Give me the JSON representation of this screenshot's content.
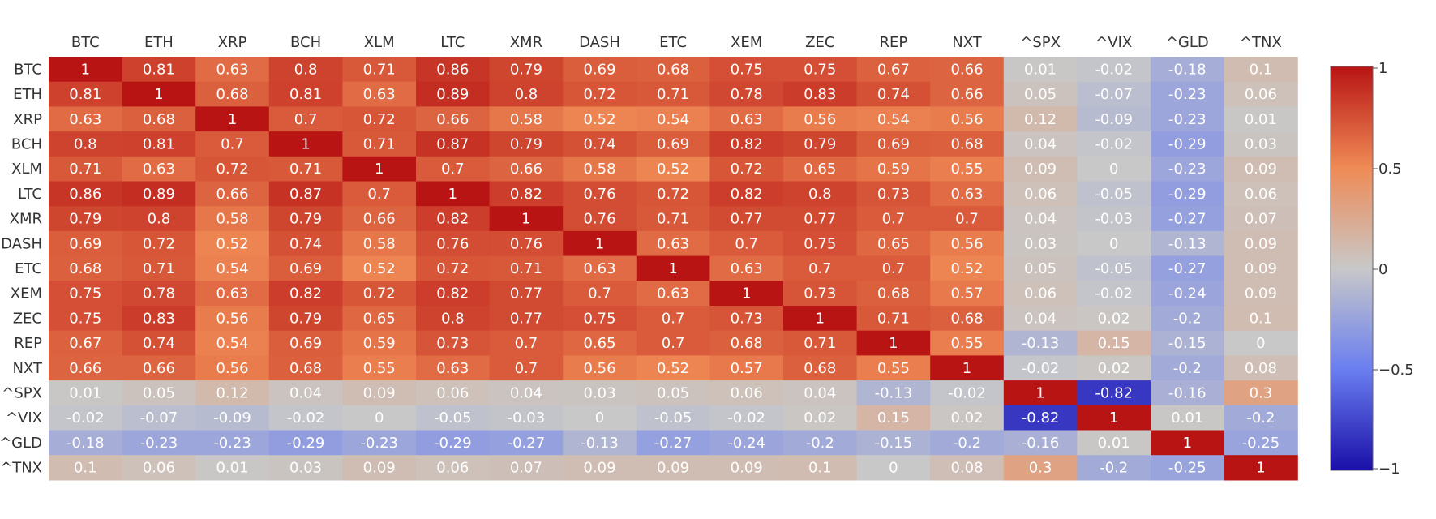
{
  "chart_data": {
    "type": "heatmap",
    "x": [
      "BTC",
      "ETH",
      "XRP",
      "BCH",
      "XLM",
      "LTC",
      "XMR",
      "DASH",
      "ETC",
      "XEM",
      "ZEC",
      "REP",
      "NXT",
      "^SPX",
      "^VIX",
      "^GLD",
      "^TNX"
    ],
    "y": [
      "BTC",
      "ETH",
      "XRP",
      "BCH",
      "XLM",
      "LTC",
      "XMR",
      "DASH",
      "ETC",
      "XEM",
      "ZEC",
      "REP",
      "NXT",
      "^SPX",
      "^VIX",
      "^GLD",
      "^TNX"
    ],
    "z": [
      [
        1,
        0.81,
        0.63,
        0.8,
        0.71,
        0.86,
        0.79,
        0.69,
        0.68,
        0.75,
        0.75,
        0.67,
        0.66,
        0.01,
        -0.02,
        -0.18,
        0.1
      ],
      [
        0.81,
        1,
        0.68,
        0.81,
        0.63,
        0.89,
        0.8,
        0.72,
        0.71,
        0.78,
        0.83,
        0.74,
        0.66,
        0.05,
        -0.07,
        -0.23,
        0.06
      ],
      [
        0.63,
        0.68,
        1,
        0.7,
        0.72,
        0.66,
        0.58,
        0.52,
        0.54,
        0.63,
        0.56,
        0.54,
        0.56,
        0.12,
        -0.09,
        -0.23,
        0.01
      ],
      [
        0.8,
        0.81,
        0.7,
        1,
        0.71,
        0.87,
        0.79,
        0.74,
        0.69,
        0.82,
        0.79,
        0.69,
        0.68,
        0.04,
        -0.02,
        -0.29,
        0.03
      ],
      [
        0.71,
        0.63,
        0.72,
        0.71,
        1,
        0.7,
        0.66,
        0.58,
        0.52,
        0.72,
        0.65,
        0.59,
        0.55,
        0.09,
        0,
        -0.23,
        0.09
      ],
      [
        0.86,
        0.89,
        0.66,
        0.87,
        0.7,
        1,
        0.82,
        0.76,
        0.72,
        0.82,
        0.8,
        0.73,
        0.63,
        0.06,
        -0.05,
        -0.29,
        0.06
      ],
      [
        0.79,
        0.8,
        0.58,
        0.79,
        0.66,
        0.82,
        1,
        0.76,
        0.71,
        0.77,
        0.77,
        0.7,
        0.7,
        0.04,
        -0.03,
        -0.27,
        0.07
      ],
      [
        0.69,
        0.72,
        0.52,
        0.74,
        0.58,
        0.76,
        0.76,
        1,
        0.63,
        0.7,
        0.75,
        0.65,
        0.56,
        0.03,
        0,
        -0.13,
        0.09
      ],
      [
        0.68,
        0.71,
        0.54,
        0.69,
        0.52,
        0.72,
        0.71,
        0.63,
        1,
        0.63,
        0.7,
        0.7,
        0.52,
        0.05,
        -0.05,
        -0.27,
        0.09
      ],
      [
        0.75,
        0.78,
        0.63,
        0.82,
        0.72,
        0.82,
        0.77,
        0.7,
        0.63,
        1,
        0.73,
        0.68,
        0.57,
        0.06,
        -0.02,
        -0.24,
        0.09
      ],
      [
        0.75,
        0.83,
        0.56,
        0.79,
        0.65,
        0.8,
        0.77,
        0.75,
        0.7,
        0.73,
        1,
        0.71,
        0.68,
        0.04,
        0.02,
        -0.2,
        0.1
      ],
      [
        0.67,
        0.74,
        0.54,
        0.69,
        0.59,
        0.73,
        0.7,
        0.65,
        0.7,
        0.68,
        0.71,
        1,
        0.55,
        -0.13,
        0.15,
        -0.15,
        0
      ],
      [
        0.66,
        0.66,
        0.56,
        0.68,
        0.55,
        0.63,
        0.7,
        0.56,
        0.52,
        0.57,
        0.68,
        0.55,
        1,
        -0.02,
        0.02,
        -0.2,
        0.08
      ],
      [
        0.01,
        0.05,
        0.12,
        0.04,
        0.09,
        0.06,
        0.04,
        0.03,
        0.05,
        0.06,
        0.04,
        -0.13,
        -0.02,
        1,
        -0.82,
        -0.16,
        0.3
      ],
      [
        -0.02,
        -0.07,
        -0.09,
        -0.02,
        0,
        -0.05,
        -0.03,
        0,
        -0.05,
        -0.02,
        0.02,
        0.15,
        0.02,
        -0.82,
        1,
        0.01,
        -0.2
      ],
      [
        -0.18,
        -0.23,
        -0.23,
        -0.29,
        -0.23,
        -0.29,
        -0.27,
        -0.13,
        -0.27,
        -0.24,
        -0.2,
        -0.15,
        -0.2,
        -0.16,
        0.01,
        1,
        -0.25
      ],
      [
        0.1,
        0.06,
        0.01,
        0.03,
        0.09,
        0.06,
        0.07,
        0.09,
        0.09,
        0.09,
        0.1,
        0,
        0.08,
        0.3,
        -0.2,
        -0.25,
        1
      ]
    ],
    "zlim": [
      -1,
      1
    ],
    "colorscale": [
      "#1a0fa8",
      "#6a7ef0",
      "#c8c8c8",
      "#ef8a55",
      "#b81414"
    ],
    "colorbar_ticks": [
      "1",
      "0.5",
      "0",
      "−0.5",
      "−1"
    ]
  }
}
